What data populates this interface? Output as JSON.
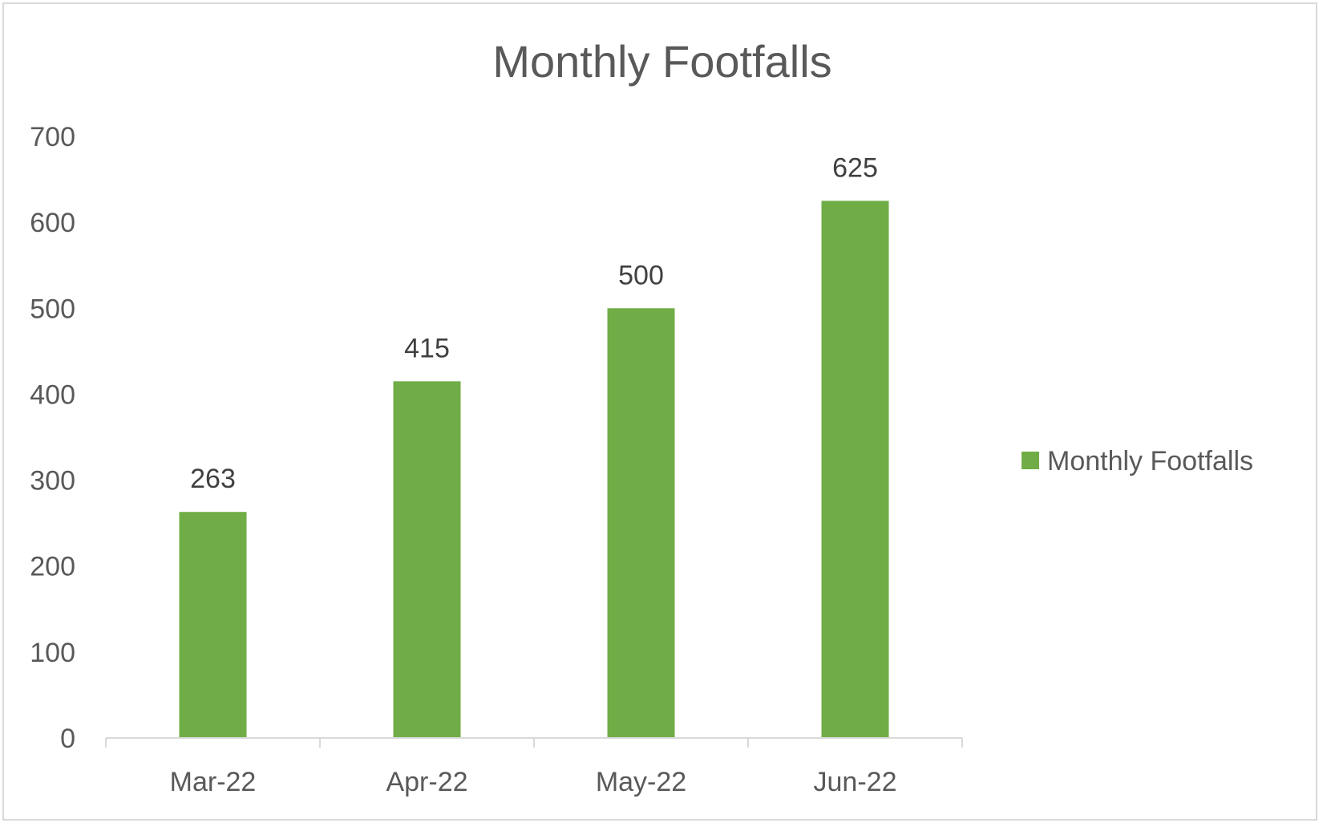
{
  "chart_data": {
    "type": "bar",
    "title": "Monthly Footfalls",
    "categories": [
      "Mar-22",
      "Apr-22",
      "May-22",
      "Jun-22"
    ],
    "series": [
      {
        "name": "Monthly Footfalls",
        "values": [
          263,
          415,
          500,
          625
        ],
        "color": "#70ad47"
      }
    ],
    "data_labels": [
      "263",
      "415",
      "500",
      "625"
    ],
    "y_ticks": [
      "0",
      "100",
      "200",
      "300",
      "400",
      "500",
      "600",
      "700"
    ],
    "ylim": [
      0,
      700
    ],
    "grid": false,
    "legend": {
      "position": "right",
      "label": "Monthly Footfalls"
    },
    "colors": {
      "bar": "#70ad47",
      "axis": "#d9d9d9",
      "text": "#595959"
    }
  }
}
